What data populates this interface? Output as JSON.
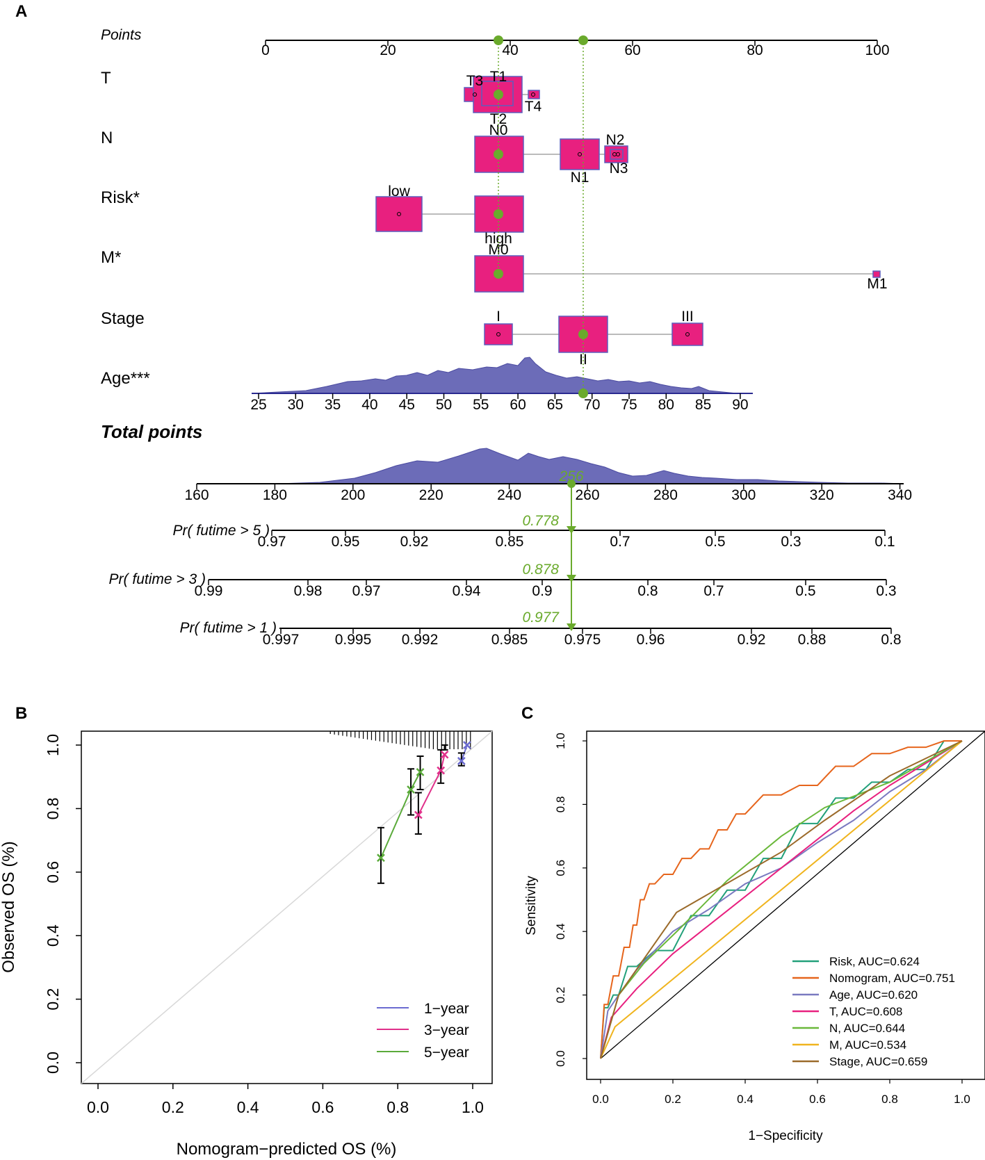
{
  "panels": {
    "a": "A",
    "b": "B",
    "c": "C"
  },
  "colors": {
    "box": "#e8207f",
    "box_edge": "#5d5dbd",
    "density": "#6c6cb8",
    "dot": "#6aaa2c",
    "pink": "#e0308a",
    "blue": "#6b6bd0",
    "green": "#5aaa3a"
  },
  "nomogram": {
    "points_label": "Points",
    "points_ticks": [
      "0",
      "20",
      "40",
      "60",
      "80",
      "100"
    ],
    "variables": [
      {
        "name": "T",
        "levels": [
          {
            "label": "T3",
            "points": 34
          },
          {
            "label": "T1",
            "points": 38
          },
          {
            "label": "T2",
            "points": 38
          },
          {
            "label": "T4",
            "points": 44
          }
        ]
      },
      {
        "name": "N",
        "levels": [
          {
            "label": "N0",
            "points": 38
          },
          {
            "label": "N1",
            "points": 52
          },
          {
            "label": "N2",
            "points": 57
          },
          {
            "label": "N3",
            "points": 57.5
          }
        ]
      },
      {
        "name": "Risk*",
        "levels": [
          {
            "label": "low",
            "points": 22
          },
          {
            "label": "high",
            "points": 38
          }
        ]
      },
      {
        "name": "M*",
        "levels": [
          {
            "label": "M0",
            "points": 38
          },
          {
            "label": "M1",
            "points": 100
          }
        ]
      },
      {
        "name": "Stage",
        "levels": [
          {
            "label": "I",
            "points": 38
          },
          {
            "label": "II",
            "points": 52
          },
          {
            "label": "III",
            "points": 69
          }
        ]
      }
    ],
    "age_label": "Age***",
    "age_ticks": [
      "25",
      "30",
      "35",
      "40",
      "45",
      "50",
      "55",
      "60",
      "65",
      "70",
      "75",
      "80",
      "85",
      "90"
    ],
    "total_label": "Total points",
    "total_ticks": [
      "160",
      "180",
      "200",
      "220",
      "240",
      "260",
      "280",
      "300",
      "320",
      "340"
    ],
    "total_value": "256",
    "pr5": {
      "label": "Pr( futime > 5 )",
      "value": "0.778",
      "ticks": [
        "0.97",
        "0.95",
        "0.92",
        "0.85",
        "0.7",
        "0.5",
        "0.3",
        "0.1"
      ]
    },
    "pr3": {
      "label": "Pr( futime > 3 )",
      "value": "0.878",
      "ticks": [
        "0.99",
        "0.98",
        "0.97",
        "0.94",
        "0.9",
        "0.8",
        "0.7",
        "0.5",
        "0.3"
      ]
    },
    "pr1": {
      "label": "Pr( futime > 1 )",
      "value": "0.977",
      "ticks": [
        "0.997",
        "0.995",
        "0.992",
        "0.985",
        "0.975",
        "0.96",
        "0.92",
        "0.88",
        "0.8"
      ]
    }
  },
  "chart_data": [
    {
      "type": "line",
      "title": "",
      "xlabel": "Nomogram−predicted OS (%)",
      "ylabel": "Observed OS (%)",
      "xlim": [
        0,
        1
      ],
      "ylim": [
        0,
        1
      ],
      "ticks": [
        "0.0",
        "0.2",
        "0.4",
        "0.6",
        "0.8",
        "1.0"
      ],
      "series": [
        {
          "name": "1-year",
          "x": [
            0.97,
            0.985
          ],
          "y": [
            0.95,
            1.0
          ]
        },
        {
          "name": "3-year",
          "x": [
            0.855,
            0.915,
            0.925
          ],
          "y": [
            0.78,
            0.92,
            0.97
          ]
        },
        {
          "name": "5-year",
          "x": [
            0.755,
            0.835,
            0.86
          ],
          "y": [
            0.645,
            0.86,
            0.915
          ]
        }
      ],
      "legend": [
        "1−year",
        "3−year",
        "5−year"
      ]
    },
    {
      "type": "line",
      "title": "",
      "xlabel": "1−Specificity",
      "ylabel": "Sensitivity",
      "xlim": [
        0,
        1
      ],
      "ylim": [
        0,
        1
      ],
      "ticks": [
        "0.0",
        "0.2",
        "0.4",
        "0.6",
        "0.8",
        "1.0"
      ],
      "series": [
        {
          "name": "Risk",
          "auc": 0.624,
          "x": [
            0,
            0.02,
            0.05,
            0.1,
            0.2,
            0.3,
            0.4,
            0.5,
            0.6,
            0.7,
            0.8,
            0.9,
            1
          ],
          "y": [
            0,
            0.16,
            0.2,
            0.29,
            0.34,
            0.45,
            0.53,
            0.63,
            0.74,
            0.82,
            0.87,
            0.91,
            1
          ]
        },
        {
          "name": "Nomogram",
          "auc": 0.751,
          "x": [
            0,
            0.02,
            0.05,
            0.08,
            0.1,
            0.12,
            0.15,
            0.2,
            0.25,
            0.3,
            0.35,
            0.4,
            0.5,
            0.6,
            0.7,
            0.8,
            0.9,
            1
          ],
          "y": [
            0,
            0.17,
            0.26,
            0.35,
            0.42,
            0.5,
            0.55,
            0.58,
            0.63,
            0.66,
            0.72,
            0.77,
            0.83,
            0.86,
            0.92,
            0.96,
            0.98,
            1
          ]
        },
        {
          "name": "Age",
          "auc": 0.62,
          "x": [
            0,
            0.02,
            0.05,
            0.1,
            0.2,
            0.3,
            0.4,
            0.5,
            0.6,
            0.7,
            0.8,
            0.9,
            1
          ],
          "y": [
            0,
            0.15,
            0.2,
            0.28,
            0.4,
            0.47,
            0.55,
            0.6,
            0.68,
            0.75,
            0.84,
            0.91,
            1
          ]
        },
        {
          "name": "T",
          "auc": 0.608,
          "x": [
            0,
            0.03,
            0.1,
            0.2,
            0.3,
            0.4,
            0.5,
            0.6,
            0.7,
            0.8,
            0.9,
            1
          ],
          "y": [
            0,
            0.13,
            0.22,
            0.33,
            0.42,
            0.51,
            0.6,
            0.69,
            0.78,
            0.86,
            0.93,
            1
          ]
        },
        {
          "name": "N",
          "auc": 0.644,
          "x": [
            0,
            0.05,
            0.12,
            0.22,
            0.35,
            0.5,
            0.62,
            0.8,
            1
          ],
          "y": [
            0,
            0.2,
            0.3,
            0.41,
            0.56,
            0.7,
            0.79,
            0.87,
            1
          ]
        },
        {
          "name": "M",
          "auc": 0.534,
          "x": [
            0,
            0.04,
            1
          ],
          "y": [
            0,
            0.1,
            1
          ]
        },
        {
          "name": "Stage",
          "auc": 0.659,
          "x": [
            0,
            0.05,
            0.21,
            0.5,
            0.62,
            0.8,
            1
          ],
          "y": [
            0,
            0.2,
            0.46,
            0.65,
            0.75,
            0.89,
            1
          ]
        }
      ],
      "legend": [
        "Risk, AUC=0.624",
        "Nomogram, AUC=0.751",
        "Age, AUC=0.620",
        "T, AUC=0.608",
        "N, AUC=0.644",
        "M, AUC=0.534",
        "Stage, AUC=0.659"
      ]
    }
  ]
}
